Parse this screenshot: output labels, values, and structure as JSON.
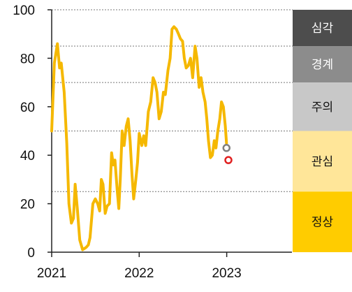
{
  "chart_data": {
    "type": "line",
    "x_axis": {
      "type": "date",
      "range": [
        "2021-01-01",
        "2023-09-30"
      ],
      "ticks": [
        {
          "label": "2021",
          "date": "2021-01-01"
        },
        {
          "label": "2022",
          "date": "2022-01-01"
        },
        {
          "label": "2023",
          "date": "2023-01-01"
        }
      ]
    },
    "y_axis": {
      "range": [
        0,
        100
      ],
      "ticks": [
        0,
        20,
        40,
        60,
        80,
        100
      ]
    },
    "thresholds": [
      25,
      50,
      70,
      85,
      100
    ],
    "bands": [
      {
        "label": "심각",
        "from": 85,
        "to": 100,
        "color": "#4d4d4d",
        "text_color": "#ffffff"
      },
      {
        "label": "경계",
        "from": 70,
        "to": 85,
        "color": "#8c8c8c",
        "text_color": "#ffffff"
      },
      {
        "label": "주의",
        "from": 50,
        "to": 70,
        "color": "#c8c8c8",
        "text_color": "#111111"
      },
      {
        "label": "관심",
        "from": 25,
        "to": 50,
        "color": "#ffe699",
        "text_color": "#111111"
      },
      {
        "label": "정상",
        "from": 0,
        "to": 25,
        "color": "#ffcc00",
        "text_color": "#111111"
      }
    ],
    "series": [
      {
        "color": "#f5b800",
        "points": [
          [
            "2021-01-01",
            50
          ],
          [
            "2021-01-12",
            78
          ],
          [
            "2021-01-25",
            86
          ],
          [
            "2021-02-03",
            76
          ],
          [
            "2021-02-10",
            78
          ],
          [
            "2021-02-22",
            66
          ],
          [
            "2021-03-05",
            45
          ],
          [
            "2021-03-14",
            20
          ],
          [
            "2021-03-24",
            12
          ],
          [
            "2021-04-02",
            14
          ],
          [
            "2021-04-09",
            28
          ],
          [
            "2021-04-18",
            18
          ],
          [
            "2021-04-28",
            5
          ],
          [
            "2021-05-10",
            1
          ],
          [
            "2021-05-25",
            2
          ],
          [
            "2021-06-03",
            3
          ],
          [
            "2021-06-10",
            6
          ],
          [
            "2021-06-22",
            20
          ],
          [
            "2021-07-02",
            22
          ],
          [
            "2021-07-12",
            20
          ],
          [
            "2021-07-20",
            17
          ],
          [
            "2021-07-27",
            30
          ],
          [
            "2021-08-03",
            28
          ],
          [
            "2021-08-12",
            16
          ],
          [
            "2021-08-20",
            19
          ],
          [
            "2021-08-30",
            20
          ],
          [
            "2021-09-08",
            41
          ],
          [
            "2021-09-15",
            36
          ],
          [
            "2021-09-22",
            38
          ],
          [
            "2021-10-01",
            26
          ],
          [
            "2021-10-08",
            18
          ],
          [
            "2021-10-14",
            30
          ],
          [
            "2021-10-22",
            50
          ],
          [
            "2021-10-30",
            44
          ],
          [
            "2021-11-08",
            52
          ],
          [
            "2021-11-16",
            55
          ],
          [
            "2021-11-24",
            46
          ],
          [
            "2021-12-02",
            32
          ],
          [
            "2021-12-09",
            22
          ],
          [
            "2021-12-18",
            30
          ],
          [
            "2021-12-25",
            37
          ],
          [
            "2022-01-01",
            49
          ],
          [
            "2022-01-12",
            44
          ],
          [
            "2022-01-20",
            48
          ],
          [
            "2022-01-28",
            44
          ],
          [
            "2022-02-08",
            58
          ],
          [
            "2022-02-18",
            62
          ],
          [
            "2022-02-28",
            72
          ],
          [
            "2022-03-08",
            70
          ],
          [
            "2022-03-16",
            66
          ],
          [
            "2022-03-25",
            55
          ],
          [
            "2022-04-03",
            58
          ],
          [
            "2022-04-12",
            66
          ],
          [
            "2022-04-20",
            65
          ],
          [
            "2022-05-01",
            75
          ],
          [
            "2022-05-10",
            80
          ],
          [
            "2022-05-18",
            92
          ],
          [
            "2022-05-26",
            93
          ],
          [
            "2022-06-05",
            92
          ],
          [
            "2022-06-14",
            90
          ],
          [
            "2022-06-22",
            88
          ],
          [
            "2022-07-01",
            87
          ],
          [
            "2022-07-08",
            80
          ],
          [
            "2022-07-16",
            76
          ],
          [
            "2022-07-25",
            77
          ],
          [
            "2022-08-03",
            80
          ],
          [
            "2022-08-12",
            72
          ],
          [
            "2022-08-22",
            85
          ],
          [
            "2022-08-30",
            80
          ],
          [
            "2022-09-08",
            68
          ],
          [
            "2022-09-16",
            72
          ],
          [
            "2022-09-24",
            66
          ],
          [
            "2022-10-03",
            62
          ],
          [
            "2022-10-10",
            55
          ],
          [
            "2022-10-17",
            46
          ],
          [
            "2022-10-25",
            39
          ],
          [
            "2022-11-02",
            40
          ],
          [
            "2022-11-10",
            46
          ],
          [
            "2022-11-17",
            43
          ],
          [
            "2022-11-25",
            50
          ],
          [
            "2022-12-03",
            55
          ],
          [
            "2022-12-10",
            62
          ],
          [
            "2022-12-18",
            60
          ],
          [
            "2022-12-26",
            52
          ],
          [
            "2022-12-31",
            45
          ]
        ]
      }
    ],
    "markers": [
      {
        "date": "2022-12-31",
        "value": 43,
        "style": "hollow",
        "color": "#808080"
      },
      {
        "date": "2023-01-08",
        "value": 38,
        "style": "hollow",
        "color": "#e02020"
      }
    ]
  }
}
